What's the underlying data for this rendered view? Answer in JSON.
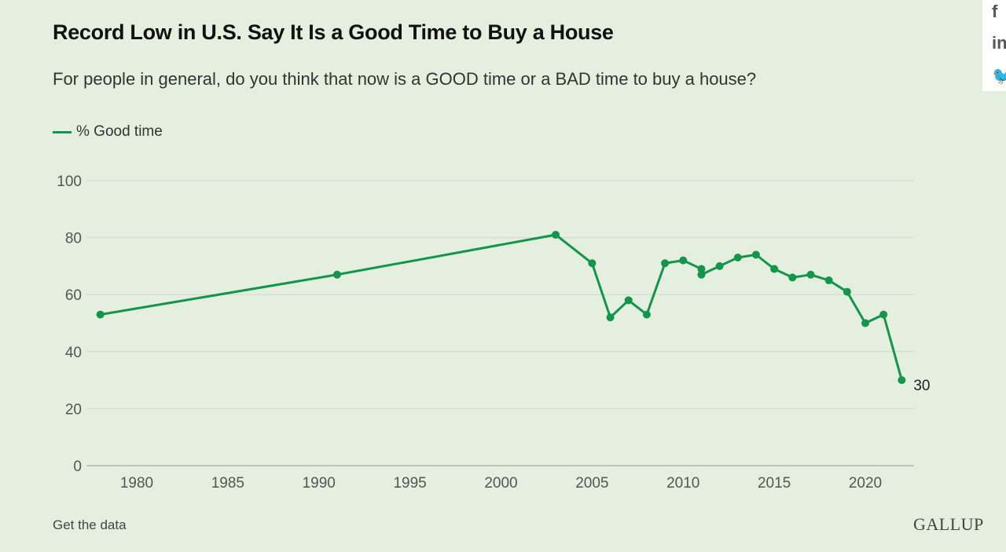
{
  "header": {
    "title": "Record Low in U.S. Say It Is a Good Time to Buy a House",
    "subtitle": "For people in general, do you think that now is a GOOD time or a BAD time to buy a house?"
  },
  "footer": {
    "data_link": "Get the data",
    "logo": "GALLUP"
  },
  "share": {
    "facebook": "f",
    "linkedin": "in",
    "twitter": "twitter-icon"
  },
  "colors": {
    "line": "#13954b",
    "background": "#e4efe0",
    "grid": "#cfd8cc"
  },
  "chart_data": {
    "type": "line",
    "title": "Record Low in U.S. Say It Is a Good Time to Buy a House",
    "xlabel": "",
    "ylabel": "",
    "grid": true,
    "legend_position": "top-left",
    "xlim": [
      1977.5,
      2023
    ],
    "ylim": [
      0,
      100
    ],
    "xticks": [
      1980,
      1985,
      1990,
      1995,
      2000,
      2005,
      2010,
      2015,
      2020
    ],
    "yticks": [
      0,
      20,
      40,
      60,
      80,
      100
    ],
    "series": [
      {
        "name": "% Good time",
        "x": [
          1978,
          1991,
          2003,
          2005,
          2006,
          2007,
          2008,
          2009,
          2010,
          2011,
          2011,
          2012,
          2013,
          2014,
          2015,
          2016,
          2017,
          2018,
          2019,
          2020,
          2021,
          2022
        ],
        "y": [
          53,
          67,
          81,
          71,
          52,
          58,
          53,
          71,
          72,
          69,
          67,
          70,
          73,
          74,
          69,
          66,
          67,
          65,
          61,
          50,
          53,
          30
        ]
      }
    ],
    "annotations": [
      {
        "x": 2022,
        "y": 30,
        "text": "30"
      }
    ]
  }
}
